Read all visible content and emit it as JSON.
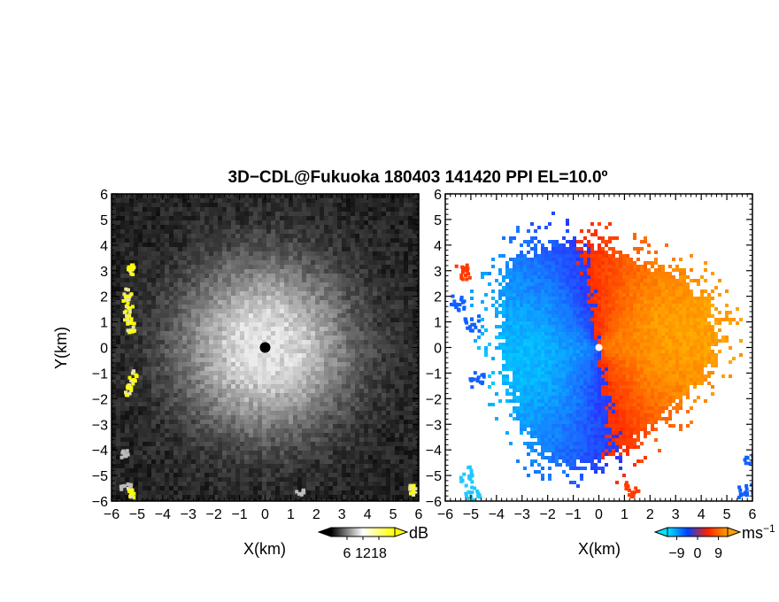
{
  "chart_data": {
    "type": "heatmap",
    "title": "3D−CDL@Fukuoka 180403 141420 PPI EL=10.0º",
    "panels": [
      {
        "id": "reflectivity",
        "quantity": "SNR",
        "xlabel": "X(km)",
        "ylabel": "Y(km)",
        "xlim": [
          -6,
          6
        ],
        "ylim": [
          -6,
          6
        ],
        "xticks": [
          "−6",
          "−5",
          "−4",
          "−3",
          "−2",
          "−1",
          "0",
          "1",
          "2",
          "3",
          "4",
          "5",
          "6"
        ],
        "yticks": [
          "−6",
          "−5",
          "−4",
          "−3",
          "−2",
          "−1",
          "0",
          "1",
          "2",
          "3",
          "4",
          "5",
          "6"
        ],
        "colorbar": {
          "unit": "dB",
          "ticks": [
            6,
            12,
            18
          ],
          "tick_labels": [
            "6",
            "12",
            "18"
          ],
          "range": [
            0,
            24
          ],
          "colors": [
            "#000000",
            "#ffffff",
            "#ffff00"
          ]
        }
      },
      {
        "id": "doppler-velocity",
        "quantity": "Radial velocity",
        "xlabel": "X(km)",
        "ylabel": "",
        "xlim": [
          -6,
          6
        ],
        "ylim": [
          -6,
          6
        ],
        "xticks": [
          "−6",
          "−5",
          "−4",
          "−3",
          "−2",
          "−1",
          "0",
          "1",
          "2",
          "3",
          "4",
          "5",
          "6"
        ],
        "yticks": [
          "−6",
          "−5",
          "−4",
          "−3",
          "−2",
          "−1",
          "0",
          "1",
          "2",
          "3",
          "4",
          "5",
          "6"
        ],
        "colorbar": {
          "unit": "ms",
          "unit_exp": "−1",
          "ticks": [
            -9,
            0,
            9
          ],
          "tick_labels": [
            "−9",
            "0",
            "9"
          ],
          "range": [
            -13,
            13
          ],
          "colors": [
            "#00e5ff",
            "#0040ff",
            "#ff2000",
            "#ffa000"
          ]
        }
      }
    ]
  }
}
